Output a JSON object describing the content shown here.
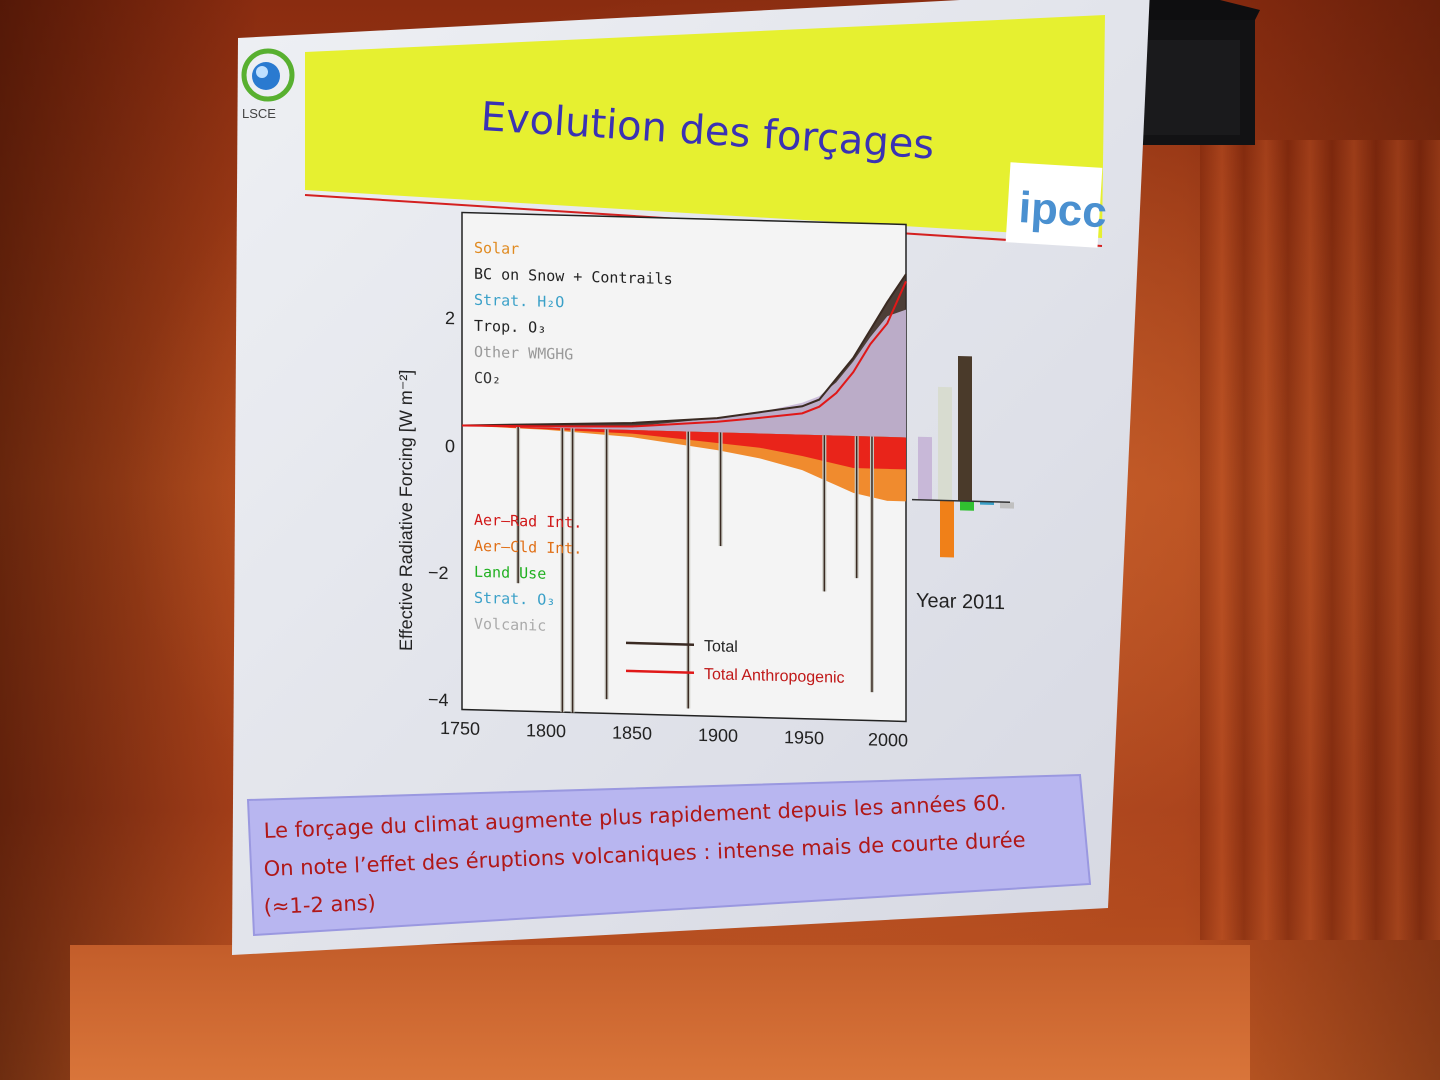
{
  "slide": {
    "title": "Evolution des forçages",
    "logo_left": "LSCE",
    "logo_right": "ipcc",
    "caption_lines": [
      "Le forçage du climat augmente plus rapidement depuis les années 60.",
      "On note l’effet des éruptions volcaniques : intense mais de courte durée",
      "(≈1-2 ans)"
    ]
  },
  "colors": {
    "title_bar": "#e6f030",
    "title_text": "#3a32b4",
    "caption_box": "#b8b6f0",
    "caption_text": "#b01818",
    "total": "#3a2a22",
    "anthropogenic": "#e01818",
    "solar": "#e08a20",
    "co2": "#c8b8d8",
    "aer_rad": "#e81818",
    "aer_cld": "#f08018",
    "land_use": "#30d030",
    "volcanic": "#c8c8c0"
  },
  "chart_data": {
    "type": "area",
    "ylabel": "Effective Radiative Forcing [W m⁻²]",
    "ylim": [
      -4,
      3
    ],
    "xlim": [
      1750,
      2011
    ],
    "x_ticks": [
      "1750",
      "1800",
      "1850",
      "1900",
      "1950",
      "2000"
    ],
    "y_ticks": [
      "2",
      "0",
      "−2",
      "−4"
    ],
    "legend_positive": [
      "Solar",
      "BC on Snow + Contrails",
      "Strat. H₂O",
      "Trop. O₃",
      "Other WMGHG",
      "CO₂"
    ],
    "legend_negative": [
      "Aer–Rad Int.",
      "Aer–Cld Int.",
      "Land Use",
      "Strat. O₃",
      "Volcanic"
    ],
    "line_legend": [
      "Total",
      "Total Anthropogenic"
    ],
    "x": [
      1750,
      1800,
      1850,
      1900,
      1925,
      1950,
      1960,
      1970,
      1980,
      1990,
      2000,
      2011
    ],
    "series": [
      {
        "name": "Total Anthropogenic",
        "values": [
          0.0,
          0.02,
          0.05,
          0.15,
          0.22,
          0.3,
          0.4,
          0.6,
          0.9,
          1.3,
          1.6,
          2.2
        ]
      },
      {
        "name": "Total",
        "values": [
          0.0,
          0.05,
          0.1,
          0.2,
          0.3,
          0.4,
          0.5,
          0.8,
          1.1,
          1.5,
          1.9,
          2.3
        ]
      },
      {
        "name": "CO₂",
        "values": [
          0.0,
          0.03,
          0.05,
          0.2,
          0.3,
          0.45,
          0.55,
          0.75,
          1.05,
          1.4,
          1.7,
          1.8
        ]
      },
      {
        "name": "Aer–Rad Int.",
        "values": [
          0.0,
          -0.02,
          -0.05,
          -0.15,
          -0.2,
          -0.3,
          -0.35,
          -0.4,
          -0.45,
          -0.45,
          -0.45,
          -0.45
        ]
      },
      {
        "name": "Aer–Cld Int.",
        "values": [
          0.0,
          -0.03,
          -0.1,
          -0.25,
          -0.35,
          -0.5,
          -0.6,
          -0.7,
          -0.8,
          -0.85,
          -0.9,
          -0.9
        ]
      }
    ],
    "volcanic_eruptions": [
      {
        "year": 1783,
        "value": -2.2
      },
      {
        "year": 1809,
        "value": -4.0
      },
      {
        "year": 1815,
        "value": -4.0
      },
      {
        "year": 1835,
        "value": -3.8
      },
      {
        "year": 1883,
        "value": -3.9
      },
      {
        "year": 1902,
        "value": -1.6
      },
      {
        "year": 1963,
        "value": -2.2
      },
      {
        "year": 1982,
        "value": -2.0
      },
      {
        "year": 1991,
        "value": -3.6
      }
    ],
    "year_2011": {
      "label": "Year 2011",
      "bars": [
        {
          "name": "Other WMGHG",
          "value": 1.0
        },
        {
          "name": "CO₂",
          "value": 1.8
        },
        {
          "name": "Trop. O₃",
          "value": 2.3
        },
        {
          "name": "Aer–Cld Int.",
          "value": -0.9
        },
        {
          "name": "Land Use",
          "value": -0.15
        },
        {
          "name": "Strat. O₃",
          "value": -0.05
        },
        {
          "name": "Volcanic",
          "value": -0.1
        }
      ]
    }
  }
}
